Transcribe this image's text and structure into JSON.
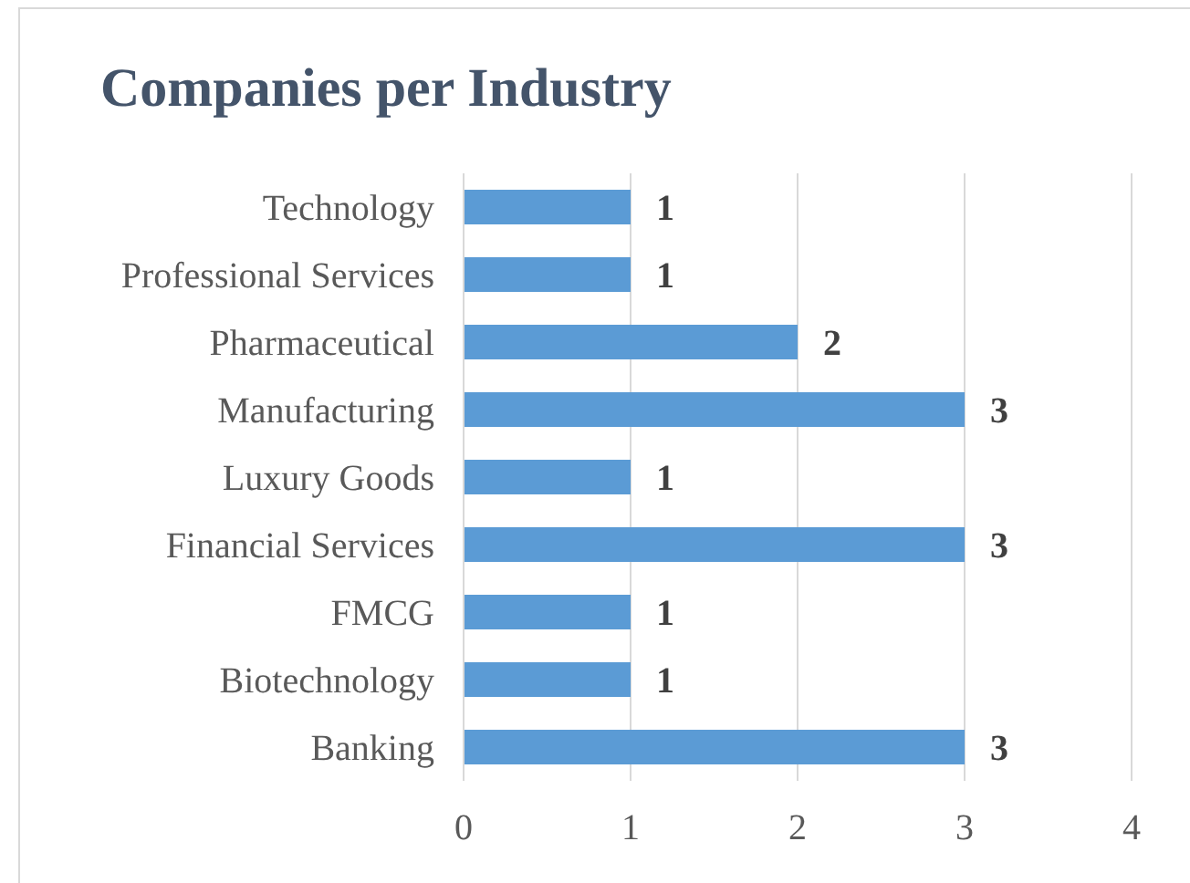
{
  "chart_data": {
    "type": "bar",
    "title": "Companies per Industry",
    "orientation": "horizontal",
    "categories": [
      "Technology",
      "Professional Services",
      "Pharmaceutical",
      "Manufacturing",
      "Luxury Goods",
      "Financial Services",
      "FMCG",
      "Biotechnology",
      "Banking"
    ],
    "values": [
      1,
      1,
      2,
      3,
      1,
      3,
      1,
      1,
      3
    ],
    "color": "#5b9bd5",
    "xlim": [
      0,
      4
    ],
    "xticks": [
      0,
      1,
      2,
      3,
      4
    ],
    "grid": "x",
    "data_labels": true,
    "legend": false
  }
}
